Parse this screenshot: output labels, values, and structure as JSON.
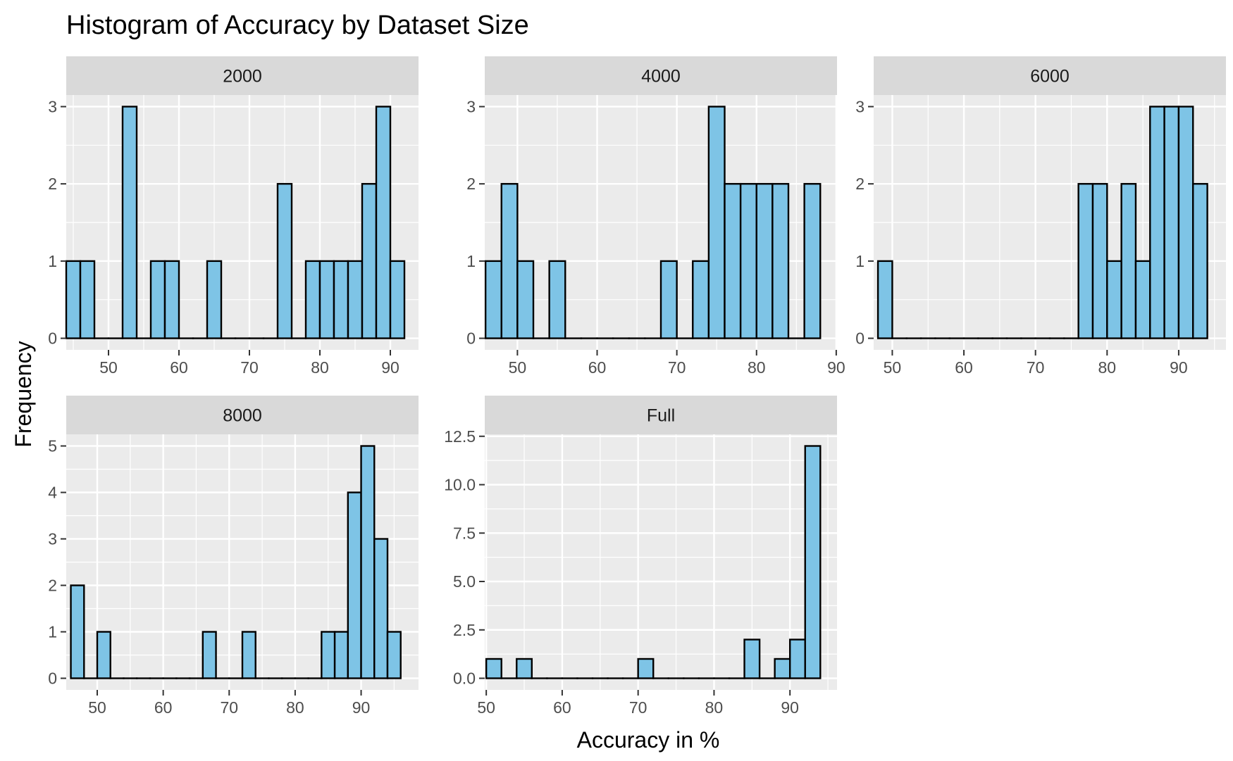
{
  "title": "Histogram of Accuracy by Dataset Size",
  "xlabel": "Accuracy in %",
  "ylabel": "Frequency",
  "colors": {
    "bar_fill": "#7ec4e6",
    "bar_stroke": "#000000",
    "panel_bg": "#ebebeb",
    "strip_bg": "#d9d9d9",
    "grid": "#ffffff"
  },
  "chart_data": [
    {
      "type": "bar",
      "name": "2000",
      "bin_width": 2,
      "xlim": [
        44,
        94
      ],
      "ylim": [
        -0.15,
        3.15
      ],
      "xticks": [
        50,
        60,
        70,
        80,
        90
      ],
      "yticks": [
        0,
        1,
        2,
        3
      ],
      "ytick_labels": [
        "0",
        "1",
        "2",
        "3"
      ],
      "bins": [
        [
          45,
          1
        ],
        [
          47,
          1
        ],
        [
          49,
          0
        ],
        [
          51,
          0
        ],
        [
          53,
          3
        ],
        [
          55,
          0
        ],
        [
          57,
          1
        ],
        [
          59,
          1
        ],
        [
          61,
          0
        ],
        [
          63,
          0
        ],
        [
          65,
          1
        ],
        [
          67,
          0
        ],
        [
          69,
          0
        ],
        [
          71,
          0
        ],
        [
          73,
          0
        ],
        [
          75,
          2
        ],
        [
          77,
          0
        ],
        [
          79,
          1
        ],
        [
          81,
          1
        ],
        [
          83,
          1
        ],
        [
          85,
          1
        ],
        [
          87,
          2
        ],
        [
          89,
          3
        ],
        [
          91,
          1
        ]
      ]
    },
    {
      "type": "bar",
      "name": "4000",
      "bin_width": 2,
      "xlim": [
        45.9,
        90.1
      ],
      "ylim": [
        -0.15,
        3.15
      ],
      "xticks": [
        50,
        60,
        70,
        80,
        90
      ],
      "yticks": [
        0,
        1,
        2,
        3
      ],
      "ytick_labels": [
        "0",
        "1",
        "2",
        "3"
      ],
      "bins": [
        [
          47,
          1
        ],
        [
          49,
          2
        ],
        [
          51,
          1
        ],
        [
          53,
          0
        ],
        [
          55,
          1
        ],
        [
          57,
          0
        ],
        [
          59,
          0
        ],
        [
          61,
          0
        ],
        [
          63,
          0
        ],
        [
          65,
          0
        ],
        [
          67,
          0
        ],
        [
          69,
          1
        ],
        [
          71,
          0
        ],
        [
          73,
          1
        ],
        [
          75,
          3
        ],
        [
          77,
          2
        ],
        [
          79,
          2
        ],
        [
          81,
          2
        ],
        [
          83,
          2
        ],
        [
          85,
          0
        ],
        [
          87,
          2
        ]
      ]
    },
    {
      "type": "bar",
      "name": "6000",
      "bin_width": 2,
      "xlim": [
        47.4,
        96.6
      ],
      "ylim": [
        -0.15,
        3.15
      ],
      "xticks": [
        50,
        60,
        70,
        80,
        90
      ],
      "yticks": [
        0,
        1,
        2,
        3
      ],
      "ytick_labels": [
        "0",
        "1",
        "2",
        "3"
      ],
      "bins": [
        [
          49,
          1
        ],
        [
          51,
          0
        ],
        [
          53,
          0
        ],
        [
          55,
          0
        ],
        [
          57,
          0
        ],
        [
          59,
          0
        ],
        [
          61,
          0
        ],
        [
          63,
          0
        ],
        [
          65,
          0
        ],
        [
          67,
          0
        ],
        [
          69,
          0
        ],
        [
          71,
          0
        ],
        [
          73,
          0
        ],
        [
          75,
          0
        ],
        [
          77,
          2
        ],
        [
          79,
          2
        ],
        [
          81,
          1
        ],
        [
          83,
          2
        ],
        [
          85,
          1
        ],
        [
          87,
          3
        ],
        [
          89,
          3
        ],
        [
          91,
          3
        ],
        [
          93,
          2
        ]
      ]
    },
    {
      "type": "bar",
      "name": "8000",
      "bin_width": 2,
      "xlim": [
        45.3,
        98.7
      ],
      "ylim": [
        -0.25,
        5.25
      ],
      "xticks": [
        50,
        60,
        70,
        80,
        90
      ],
      "yticks": [
        0,
        1,
        2,
        3,
        4,
        5
      ],
      "ytick_labels": [
        "0",
        "1",
        "2",
        "3",
        "4",
        "5"
      ],
      "bins": [
        [
          47,
          2
        ],
        [
          49,
          0
        ],
        [
          51,
          1
        ],
        [
          53,
          0
        ],
        [
          55,
          0
        ],
        [
          57,
          0
        ],
        [
          59,
          0
        ],
        [
          61,
          0
        ],
        [
          63,
          0
        ],
        [
          65,
          0
        ],
        [
          67,
          1
        ],
        [
          69,
          0
        ],
        [
          71,
          0
        ],
        [
          73,
          1
        ],
        [
          75,
          0
        ],
        [
          77,
          0
        ],
        [
          79,
          0
        ],
        [
          81,
          0
        ],
        [
          83,
          0
        ],
        [
          85,
          1
        ],
        [
          87,
          1
        ],
        [
          89,
          4
        ],
        [
          91,
          5
        ],
        [
          93,
          3
        ],
        [
          95,
          1
        ]
      ]
    },
    {
      "type": "bar",
      "name": "Full",
      "bin_width": 2,
      "xlim": [
        49.8,
        96.2
      ],
      "ylim": [
        -0.6,
        12.6
      ],
      "xticks": [
        50,
        60,
        70,
        80,
        90
      ],
      "yticks": [
        0,
        2.5,
        5,
        7.5,
        10,
        12.5
      ],
      "ytick_labels": [
        "0.0",
        "2.5",
        "5.0",
        "7.5",
        "10.0",
        "12.5"
      ],
      "bins": [
        [
          51,
          1
        ],
        [
          53,
          0
        ],
        [
          55,
          1
        ],
        [
          57,
          0
        ],
        [
          59,
          0
        ],
        [
          61,
          0
        ],
        [
          63,
          0
        ],
        [
          65,
          0
        ],
        [
          67,
          0
        ],
        [
          69,
          0
        ],
        [
          71,
          1
        ],
        [
          73,
          0
        ],
        [
          75,
          0
        ],
        [
          77,
          0
        ],
        [
          79,
          0
        ],
        [
          81,
          0
        ],
        [
          83,
          0
        ],
        [
          85,
          2
        ],
        [
          87,
          0
        ],
        [
          89,
          1
        ],
        [
          91,
          2
        ],
        [
          93,
          12
        ]
      ]
    }
  ]
}
